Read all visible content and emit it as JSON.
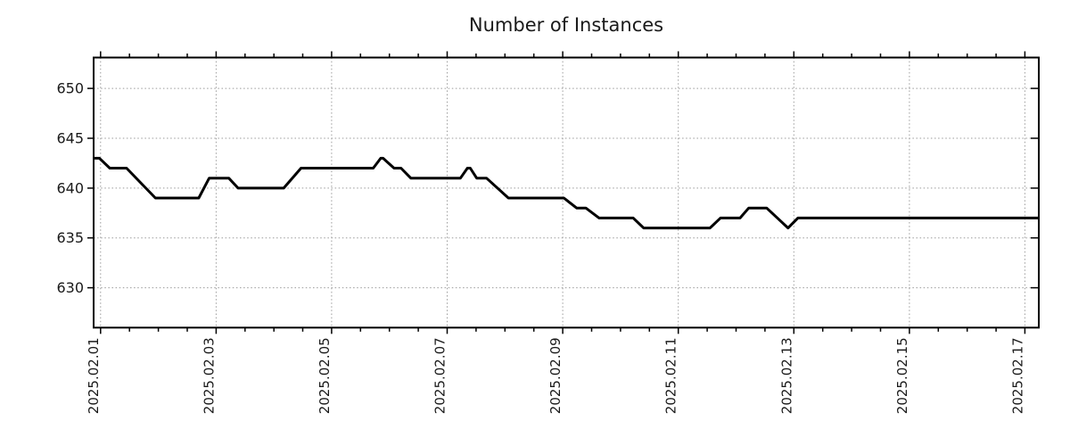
{
  "chart_data": {
    "type": "line",
    "title": "Number of Instances",
    "xlabel": "",
    "ylabel": "",
    "x_unit": "days since 2025.02.01",
    "xlim_days": [
      -0.12,
      16.24
    ],
    "ylim": [
      626.0,
      653.1
    ],
    "grid": true,
    "legend": "none",
    "background": "#ffffff",
    "line_color": "#000000",
    "line_width": 3,
    "grid_color": "#9b9b9b",
    "axis_color": "#000000",
    "text_color": "#1a1a1a",
    "y_ticks": [
      {
        "value": 650,
        "label": "650"
      },
      {
        "value": 645,
        "label": "645"
      },
      {
        "value": 640,
        "label": "640"
      },
      {
        "value": 635,
        "label": "635"
      },
      {
        "value": 630,
        "label": "630"
      }
    ],
    "x_major_ticks": [
      {
        "day": 0,
        "label": "2025.02.01"
      },
      {
        "day": 2,
        "label": "2025.02.03"
      },
      {
        "day": 4,
        "label": "2025.02.05"
      },
      {
        "day": 6,
        "label": "2025.02.07"
      },
      {
        "day": 8,
        "label": "2025.02.09"
      },
      {
        "day": 10,
        "label": "2025.02.11"
      },
      {
        "day": 12,
        "label": "2025.02.13"
      },
      {
        "day": 14,
        "label": "2025.02.15"
      },
      {
        "day": 16,
        "label": "2025.02.17"
      }
    ],
    "x_minor_step_days": 0.5,
    "series": [
      {
        "name": "instances",
        "points": [
          [
            -0.12,
            643
          ],
          [
            -0.02,
            643
          ],
          [
            0.16,
            642
          ],
          [
            0.45,
            642
          ],
          [
            0.95,
            639
          ],
          [
            1.7,
            639
          ],
          [
            1.88,
            641
          ],
          [
            2.22,
            641
          ],
          [
            2.38,
            640
          ],
          [
            3.17,
            640
          ],
          [
            3.47,
            642
          ],
          [
            4.72,
            642
          ],
          [
            4.85,
            643
          ],
          [
            4.89,
            643
          ],
          [
            5.08,
            642
          ],
          [
            5.2,
            642
          ],
          [
            5.37,
            641
          ],
          [
            6.23,
            641
          ],
          [
            6.35,
            642
          ],
          [
            6.4,
            642
          ],
          [
            6.51,
            641
          ],
          [
            6.68,
            641
          ],
          [
            7.06,
            639
          ],
          [
            8.02,
            639
          ],
          [
            8.24,
            638
          ],
          [
            8.4,
            638
          ],
          [
            8.63,
            637
          ],
          [
            9.22,
            637
          ],
          [
            9.4,
            636
          ],
          [
            10.55,
            636
          ],
          [
            10.73,
            637
          ],
          [
            11.07,
            637
          ],
          [
            11.22,
            638
          ],
          [
            11.53,
            638
          ],
          [
            11.9,
            636
          ],
          [
            12.07,
            637
          ],
          [
            16.24,
            637
          ]
        ]
      }
    ]
  }
}
